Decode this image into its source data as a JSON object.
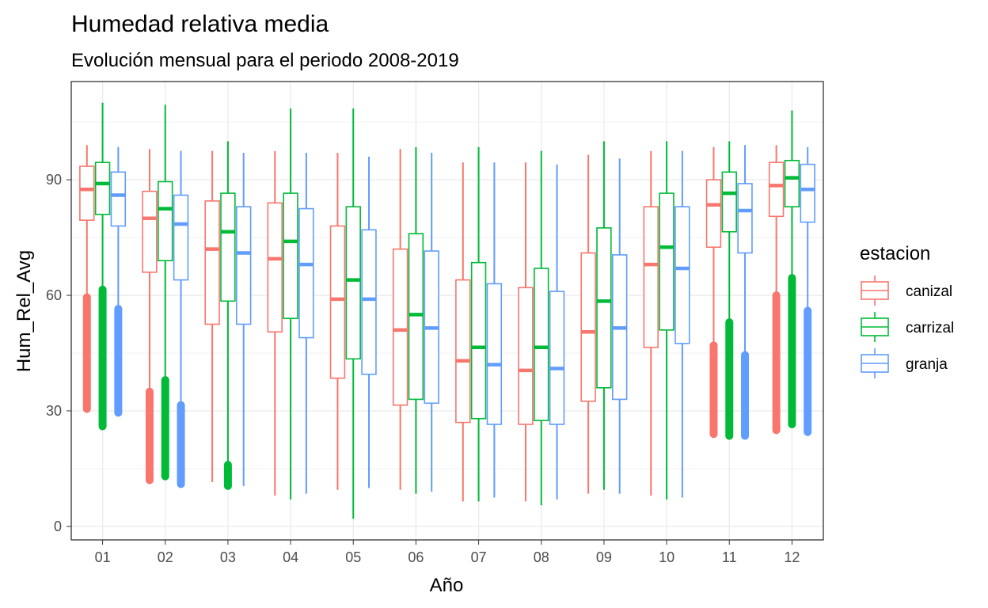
{
  "chart_data": {
    "type": "boxplot",
    "title": "Humedad relativa media",
    "subtitle": "Evolución mensual para el periodo 2008-2019",
    "xlabel": "Año",
    "ylabel": "Hum_Rel_Avg",
    "ylim": [
      -3.5,
      115.5
    ],
    "yticks": [
      0,
      30,
      60,
      90
    ],
    "grid": true,
    "legend": {
      "title": "estacion",
      "placement": "right"
    },
    "categories": [
      "01",
      "02",
      "03",
      "04",
      "05",
      "06",
      "07",
      "08",
      "09",
      "10",
      "11",
      "12"
    ],
    "series": [
      {
        "name": "canizal",
        "color": "#F8766D",
        "boxes": [
          {
            "min": 30.5,
            "q1": 79.5,
            "median": 87.5,
            "q3": 93.5,
            "max": 99,
            "outliers": [
              30.5,
              59.5
            ]
          },
          {
            "min": 12,
            "q1": 66,
            "median": 80,
            "q3": 87,
            "max": 98,
            "outliers": [
              12,
              35
            ]
          },
          {
            "min": 11.5,
            "q1": 52.5,
            "median": 72,
            "q3": 84.5,
            "max": 97.5,
            "outliers": []
          },
          {
            "min": 8,
            "q1": 50.5,
            "median": 69.5,
            "q3": 84,
            "max": 97.5,
            "outliers": []
          },
          {
            "min": 9.5,
            "q1": 38.5,
            "median": 59,
            "q3": 78,
            "max": 97,
            "outliers": []
          },
          {
            "min": 9.5,
            "q1": 31.5,
            "median": 51,
            "q3": 72,
            "max": 98,
            "outliers": []
          },
          {
            "min": 6.5,
            "q1": 27,
            "median": 43,
            "q3": 64,
            "max": 94.5,
            "outliers": []
          },
          {
            "min": 6.5,
            "q1": 26.5,
            "median": 40.5,
            "q3": 62,
            "max": 94.5,
            "outliers": []
          },
          {
            "min": 8.5,
            "q1": 32.5,
            "median": 50.5,
            "q3": 71,
            "max": 96.5,
            "outliers": []
          },
          {
            "min": 8,
            "q1": 46.5,
            "median": 68,
            "q3": 83,
            "max": 97.5,
            "outliers": []
          },
          {
            "min": 24,
            "q1": 72.5,
            "median": 83.5,
            "q3": 90,
            "max": 98.5,
            "outliers": [
              24,
              47
            ]
          },
          {
            "min": 25,
            "q1": 80.5,
            "median": 88.5,
            "q3": 94.5,
            "max": 99,
            "outliers": [
              25,
              60
            ]
          }
        ]
      },
      {
        "name": "carrizal",
        "color": "#00BA38",
        "boxes": [
          {
            "min": 26,
            "q1": 81,
            "median": 89,
            "q3": 94.5,
            "max": 110,
            "outliers": [
              26,
              61.5
            ]
          },
          {
            "min": 13,
            "q1": 69,
            "median": 82.5,
            "q3": 89.5,
            "max": 109.5,
            "outliers": [
              13,
              38
            ]
          },
          {
            "min": 10.5,
            "q1": 58.5,
            "median": 76.5,
            "q3": 86.5,
            "max": 100,
            "outliers": [
              10.5,
              16
            ]
          },
          {
            "min": 7,
            "q1": 54,
            "median": 74,
            "q3": 86.5,
            "max": 108.5,
            "outliers": []
          },
          {
            "min": 2,
            "q1": 43.5,
            "median": 64,
            "q3": 83,
            "max": 108.5,
            "outliers": []
          },
          {
            "min": 8.5,
            "q1": 33,
            "median": 55,
            "q3": 76,
            "max": 98.5,
            "outliers": []
          },
          {
            "min": 6.5,
            "q1": 28,
            "median": 46.5,
            "q3": 68.5,
            "max": 98.5,
            "outliers": []
          },
          {
            "min": 5.5,
            "q1": 27.5,
            "median": 46.5,
            "q3": 67,
            "max": 97.5,
            "outliers": []
          },
          {
            "min": 9.5,
            "q1": 36,
            "median": 58.5,
            "q3": 77.5,
            "max": 100,
            "outliers": []
          },
          {
            "min": 7,
            "q1": 51,
            "median": 72.5,
            "q3": 86.5,
            "max": 100,
            "outliers": []
          },
          {
            "min": 23.5,
            "q1": 76.5,
            "median": 86.5,
            "q3": 92,
            "max": 100,
            "outliers": [
              23.5,
              53
            ]
          },
          {
            "min": 26.5,
            "q1": 83,
            "median": 90.5,
            "q3": 95,
            "max": 108,
            "outliers": [
              26.5,
              64.5
            ]
          }
        ]
      },
      {
        "name": "granja",
        "color": "#619CFF",
        "boxes": [
          {
            "min": 29.5,
            "q1": 78,
            "median": 86,
            "q3": 92,
            "max": 98.5,
            "outliers": [
              29.5,
              56.5
            ]
          },
          {
            "min": 11,
            "q1": 64,
            "median": 78.5,
            "q3": 86,
            "max": 97.5,
            "outliers": [
              11,
              31.5
            ]
          },
          {
            "min": 10.5,
            "q1": 52.5,
            "median": 71,
            "q3": 83,
            "max": 97,
            "outliers": []
          },
          {
            "min": 8.5,
            "q1": 49,
            "median": 68,
            "q3": 82.5,
            "max": 97,
            "outliers": []
          },
          {
            "min": 10,
            "q1": 39.5,
            "median": 59,
            "q3": 77,
            "max": 96,
            "outliers": []
          },
          {
            "min": 9,
            "q1": 32,
            "median": 51.5,
            "q3": 71.5,
            "max": 97,
            "outliers": []
          },
          {
            "min": 7.5,
            "q1": 26.5,
            "median": 42,
            "q3": 63,
            "max": 94.5,
            "outliers": []
          },
          {
            "min": 7,
            "q1": 26.5,
            "median": 41,
            "q3": 61,
            "max": 94,
            "outliers": []
          },
          {
            "min": 8.5,
            "q1": 33,
            "median": 51.5,
            "q3": 70.5,
            "max": 95.5,
            "outliers": []
          },
          {
            "min": 7.5,
            "q1": 47.5,
            "median": 67,
            "q3": 83,
            "max": 97.5,
            "outliers": []
          },
          {
            "min": 23.5,
            "q1": 71,
            "median": 82,
            "q3": 89,
            "max": 99,
            "outliers": [
              23.5,
              44.5
            ]
          },
          {
            "min": 24.5,
            "q1": 79,
            "median": 87.5,
            "q3": 94,
            "max": 98.5,
            "outliers": [
              24.5,
              56
            ]
          }
        ]
      }
    ]
  }
}
